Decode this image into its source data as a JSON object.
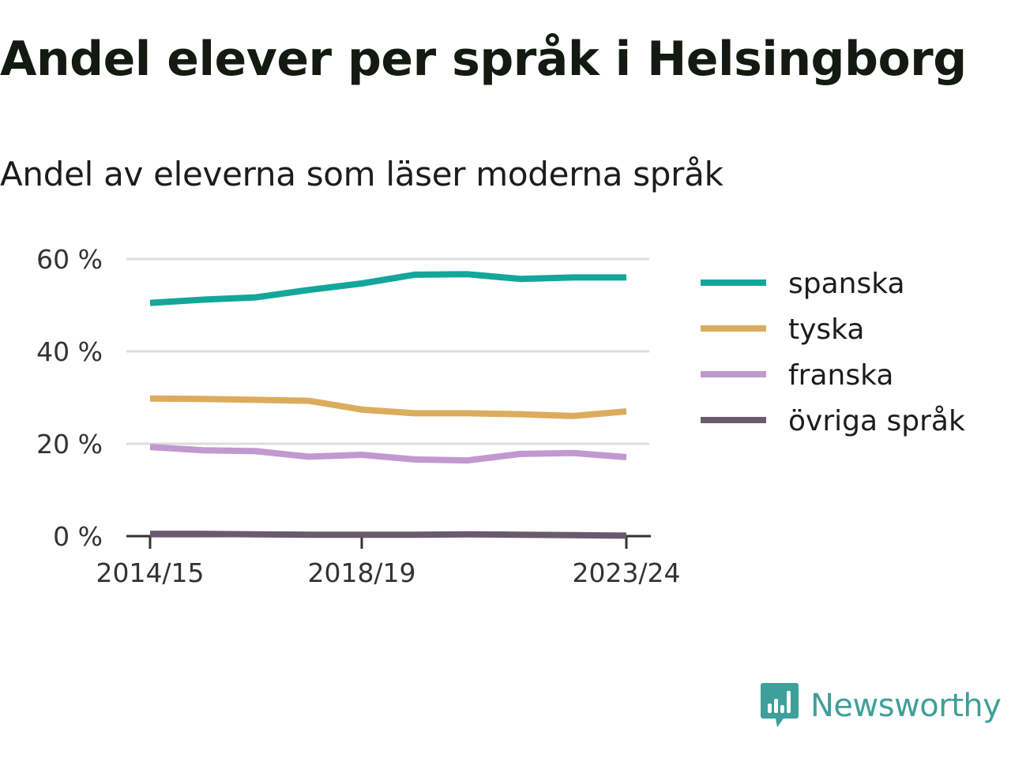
{
  "header": {
    "title": "Andel elever per språk i Helsingborg",
    "subtitle": "Andel av eleverna som läser moderna språk"
  },
  "brand": {
    "name": "Newsworthy",
    "icon": "newsworthy-logo-icon",
    "color": "#3ea09a"
  },
  "chart_data": {
    "type": "line",
    "x": [
      "2014/15",
      "2015/16",
      "2016/17",
      "2017/18",
      "2018/19",
      "2019/20",
      "2020/21",
      "2021/22",
      "2022/23",
      "2023/24"
    ],
    "x_tick_labels": [
      "2014/15",
      "2018/19",
      "2023/24"
    ],
    "ylim": [
      0,
      60
    ],
    "y_ticks": [
      0,
      20,
      40,
      60
    ],
    "y_tick_labels": [
      "0 %",
      "20 %",
      "40 %",
      "60 %"
    ],
    "grid": true,
    "legend_position": "right",
    "series": [
      {
        "name": "spanska",
        "color": "#14a69a",
        "values": [
          50.5,
          51.2,
          51.7,
          53.3,
          54.7,
          56.6,
          56.7,
          55.7,
          56.0,
          56.0
        ]
      },
      {
        "name": "tyska",
        "color": "#dcac5e",
        "values": [
          29.8,
          29.7,
          29.5,
          29.3,
          27.4,
          26.6,
          26.6,
          26.4,
          26.0,
          27.0
        ]
      },
      {
        "name": "franska",
        "color": "#c199d0",
        "values": [
          19.3,
          18.6,
          18.4,
          17.2,
          17.6,
          16.6,
          16.4,
          17.8,
          18.0,
          17.1
        ]
      },
      {
        "name": "övriga språk",
        "color": "#6b5a6e",
        "values": [
          0.5,
          0.5,
          0.4,
          0.3,
          0.3,
          0.3,
          0.4,
          0.3,
          0.2,
          0.1
        ]
      }
    ]
  }
}
